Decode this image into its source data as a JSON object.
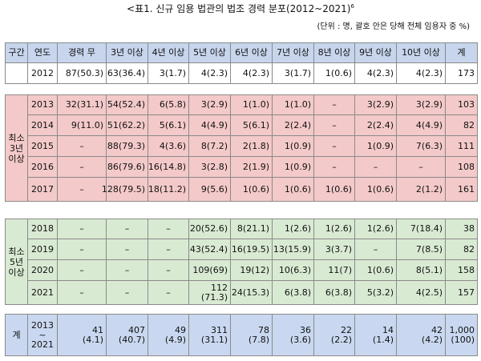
{
  "title": "<표1. 신규 임용 법관의 법조 경력 분포(2012~2021)",
  "title_sup": "6",
  "unit_note": "(단위 : 명, 괄호 안은 당해 전체 임용자 중 %)",
  "header": [
    "구간",
    "연도",
    "경력 무",
    "3년 이상",
    "4년 이상",
    "5년 이상",
    "6년 이상",
    "7년 이상",
    "8년 이상",
    "9년 이상",
    "10년 이상",
    "계"
  ],
  "row2012": [
    "2012",
    "87(50.3)",
    "63(36.4)",
    "3(1.7)",
    "4(2.3)",
    "4(2.3)",
    "3(1.7)",
    "1(0.6)",
    "4(2.3)",
    "4(2.3)",
    "173"
  ],
  "group1_label": "최소\n3년\n이상",
  "group1": [
    [
      "2013",
      "32(31.1)",
      "54(52.4)",
      "6(5.8)",
      "3(2.9)",
      "1(1.0)",
      "1(1.0)",
      "–",
      "3(2.9)",
      "3(2.9)",
      "103"
    ],
    [
      "2014",
      "9(11.0)",
      "51(62.2)",
      "5(6.1)",
      "4(4.9)",
      "5(6.1)",
      "2(2.4)",
      "–",
      "2(2.4)",
      "4(4.9)",
      "82"
    ],
    [
      "2015",
      "–",
      "88(79.3)",
      "4(3.6)",
      "8(7.2)",
      "2(1.8)",
      "1(0.9)",
      "–",
      "1(0.9)",
      "7(6.3)",
      "111"
    ],
    [
      "2016",
      "–",
      "86(79.6)",
      "16(14.8)",
      "3(2.8)",
      "2(1.9)",
      "1(0.9)",
      "–",
      "–",
      "–",
      "108"
    ],
    [
      "2017",
      "–",
      "128(79.5)",
      "18(11.2)",
      "9(5.6)",
      "1(0.6)",
      "1(0.6)",
      "1(0.6)",
      "1(0.6)",
      "2(1.2)",
      "161"
    ]
  ],
  "group2_label": "최소\n5년\n이상",
  "group2": [
    [
      "2018",
      "–",
      "–",
      "–",
      "20(52.6)",
      "8(21.1)",
      "1(2.6)",
      "1(2.6)",
      "1(2.6)",
      "7(18.4)",
      "38"
    ],
    [
      "2019",
      "–",
      "–",
      "–",
      "43(52.4)",
      "16(19.5)",
      "13(15.9)",
      "3(3.7)",
      "–",
      "7(8.5)",
      "82"
    ],
    [
      "2020",
      "–",
      "–",
      "–",
      "109(69)",
      "19(12)",
      "10(6.3)",
      "11(7)",
      "1(0.6)",
      "8(5.1)",
      "158"
    ],
    [
      "2021",
      "–",
      "–",
      "–",
      "112\n(71.3)",
      "24(15.3)",
      "6(3.8)",
      "6(3.8)",
      "5(3.2)",
      "4(2.5)",
      "157"
    ]
  ],
  "total_label": "계",
  "total_years": "2013\n~\n2021",
  "totals": [
    [
      "41",
      "(4.1)"
    ],
    [
      "407",
      "(40.7)"
    ],
    [
      "49",
      "(4.9)"
    ],
    [
      "311",
      "(31.1)"
    ],
    [
      "78",
      "(7.8)"
    ],
    [
      "36",
      "(3.6)"
    ],
    [
      "22",
      "(2.2)"
    ],
    [
      "14",
      "(1.4)"
    ],
    [
      "42",
      "(4.2)"
    ],
    [
      "1,000",
      "(100)"
    ]
  ]
}
